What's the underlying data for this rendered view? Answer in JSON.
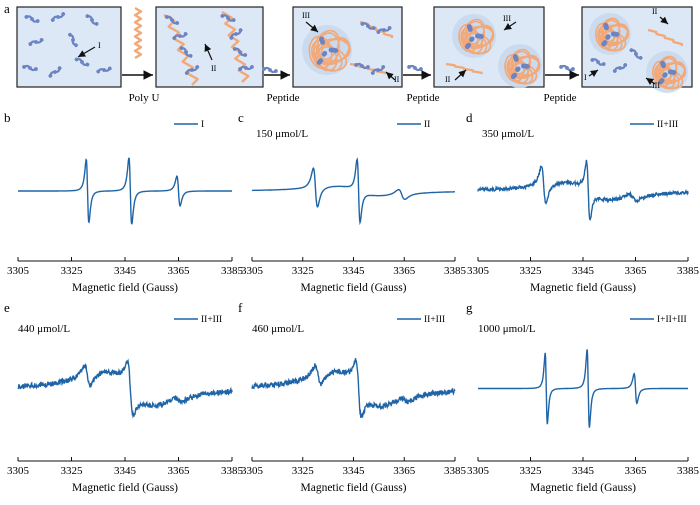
{
  "figure_label": "a",
  "top_panel": {
    "labels": {
      "I": "I",
      "II": "II",
      "III": "III"
    },
    "arrow_labels": [
      "Poly U",
      "Peptide",
      "Peptide",
      "Peptide"
    ],
    "colors": {
      "box_bg": "#dce8f5",
      "box_border": "#222222",
      "peptide": "#6c84c2",
      "rna": "#f3a877",
      "glow": "#c9d9ee"
    }
  },
  "chart_data": [
    {
      "type": "line",
      "panel": "b",
      "label": "",
      "legend": "I",
      "xlabel": "Magnetic field (Gauss)",
      "xlim": [
        3305,
        3385
      ],
      "xticks": [
        3305,
        3325,
        3345,
        3365,
        3385
      ],
      "lines": [
        {
          "c": 3331,
          "a": 0.55,
          "w": 0.85
        },
        {
          "c": 3347,
          "a": 0.58,
          "w": 0.9
        },
        {
          "c": 3365,
          "a": 0.26,
          "w": 1.0
        }
      ],
      "slope": 0,
      "broad": 0,
      "noise": 0
    },
    {
      "type": "line",
      "panel": "c",
      "label": "150 μmol/L",
      "legend": "II",
      "xlabel": "Magnetic field (Gauss)",
      "xlim": [
        3305,
        3385
      ],
      "xticks": [
        3305,
        3325,
        3345,
        3365,
        3385
      ],
      "lines": [
        {
          "c": 3330,
          "a": 0.34,
          "w": 1.4
        },
        {
          "c": 3347,
          "a": 0.54,
          "w": 1.0
        },
        {
          "c": 3364,
          "a": 0.09,
          "w": 2.2
        }
      ],
      "slope": 0,
      "broad": 0.12,
      "noise": 0
    },
    {
      "type": "line",
      "panel": "d",
      "label": "350 μmol/L",
      "legend": "II+III",
      "xlabel": "Magnetic field (Gauss)",
      "xlim": [
        3305,
        3385
      ],
      "xticks": [
        3305,
        3325,
        3345,
        3365,
        3385
      ],
      "lines": [
        {
          "c": 3330,
          "a": 0.32,
          "w": 1.5
        },
        {
          "c": 3347,
          "a": 0.5,
          "w": 1.1
        },
        {
          "c": 3364,
          "a": 0.07,
          "w": 2.5
        }
      ],
      "slope": 0,
      "broad": 0.22,
      "noise": 0.025
    },
    {
      "type": "line",
      "panel": "e",
      "label": "440 μmol/L",
      "legend": "II+III",
      "xlabel": "Magnetic field (Gauss)",
      "xlim": [
        3305,
        3385
      ],
      "xticks": [
        3305,
        3325,
        3345,
        3365,
        3385
      ],
      "lines": [
        {
          "c": 3331,
          "a": 0.18,
          "w": 2.0
        },
        {
          "c": 3347,
          "a": 0.4,
          "w": 1.8
        },
        {
          "c": 3365,
          "a": 0.05,
          "w": 2.5
        }
      ],
      "slope": 0,
      "broad": 0.4,
      "noise": 0.035
    },
    {
      "type": "line",
      "panel": "f",
      "label": "460 μmol/L",
      "legend": "II+III",
      "xlabel": "Magnetic field (Gauss)",
      "xlim": [
        3305,
        3385
      ],
      "xticks": [
        3305,
        3325,
        3345,
        3365,
        3385
      ],
      "lines": [
        {
          "c": 3331,
          "a": 0.18,
          "w": 2.0
        },
        {
          "c": 3347,
          "a": 0.42,
          "w": 1.8
        },
        {
          "c": 3365,
          "a": 0.05,
          "w": 2.5
        }
      ],
      "slope": 0,
      "broad": 0.42,
      "noise": 0.035
    },
    {
      "type": "line",
      "panel": "g",
      "label": "1000 μmol/L",
      "legend": "I+II+III",
      "xlabel": "Magnetic field (Gauss)",
      "xlim": [
        3305,
        3385
      ],
      "xticks": [
        3305,
        3325,
        3345,
        3365,
        3385
      ],
      "lines": [
        {
          "c": 3331,
          "a": 0.6,
          "w": 0.7
        },
        {
          "c": 3347,
          "a": 0.66,
          "w": 0.75
        },
        {
          "c": 3365,
          "a": 0.25,
          "w": 0.9
        }
      ],
      "slope": 0,
      "broad": 0,
      "noise": 0
    }
  ],
  "line_color": "#1e64a6"
}
